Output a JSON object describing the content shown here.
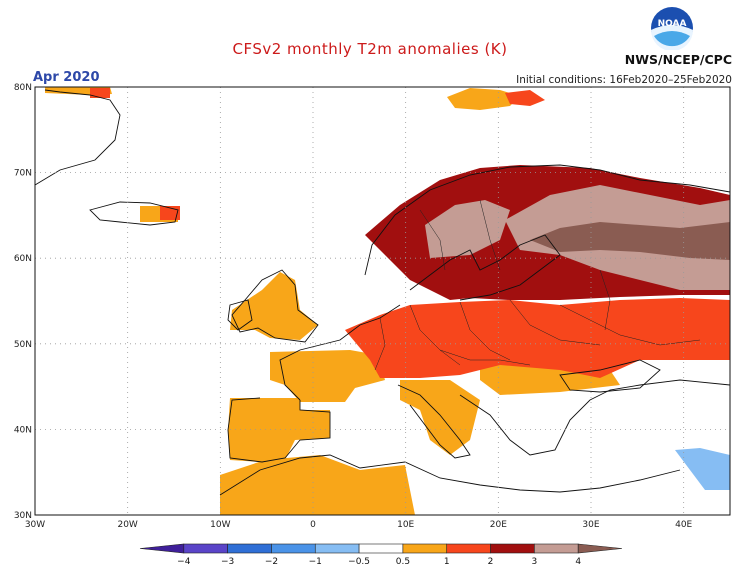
{
  "title": "CFSv2 monthly T2m anomalies (K)",
  "month": "Apr 2020",
  "initial_conditions": "Initial conditions: 16Feb2020–25Feb2020",
  "agency": "NWS/NCEP/CPC",
  "logo_text": "NOAA",
  "map": {
    "lon_range": [
      -30,
      45
    ],
    "lat_range": [
      30,
      80
    ],
    "lon_labels": [
      "30W",
      "20W",
      "10W",
      "0",
      "10E",
      "20E",
      "30E",
      "40E"
    ],
    "lat_labels": [
      "30N",
      "40N",
      "50N",
      "60N",
      "70N",
      "80N"
    ]
  },
  "colorbar": {
    "labels": [
      "−4",
      "−3",
      "−2",
      "−1",
      "−0.5",
      "0.5",
      "1",
      "2",
      "3",
      "4"
    ],
    "colors": [
      "#3f1f9a",
      "#5a44c8",
      "#2f6fd6",
      "#4a93e8",
      "#86bdf3",
      "#ffffff",
      "#f8a619",
      "#f7461c",
      "#a10f0f",
      "#c49c94",
      "#8a5c52"
    ]
  },
  "colors": {
    "orange": "#f8a619",
    "red": "#f7461c",
    "darkred": "#a10f0f",
    "rosy": "#c49c94",
    "brown": "#8a5c52",
    "lightblue": "#86bdf3",
    "title": "#cc1a1a",
    "month": "#2d48a8"
  }
}
